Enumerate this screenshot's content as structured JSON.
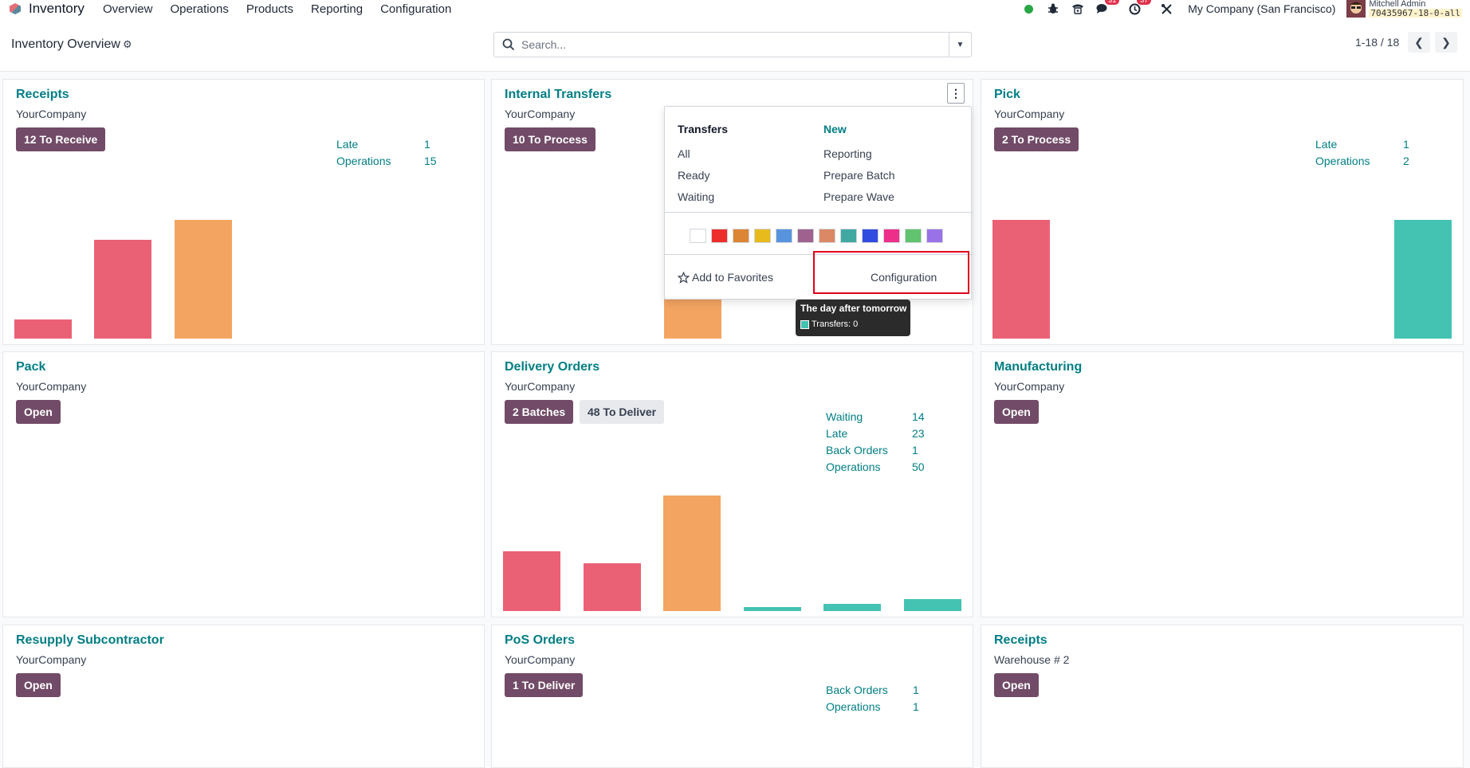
{
  "navbar": {
    "app_name": "Inventory",
    "menu": [
      "Overview",
      "Operations",
      "Products",
      "Reporting",
      "Configuration"
    ],
    "messages_count": "31",
    "activities_count": "37",
    "company": "My Company (San Francisco)",
    "user_name": "Mitchell Admin",
    "db_name": "70435967-18-0-all"
  },
  "control": {
    "title": "Inventory Overview",
    "search_placeholder": "Search...",
    "pager": "1-18 / 18"
  },
  "cards": {
    "receipts": {
      "title": "Receipts",
      "company": "YourCompany",
      "button": "12 To Receive",
      "stats": [
        {
          "label": "Late",
          "value": "1"
        },
        {
          "label": "Operations",
          "value": "15"
        }
      ]
    },
    "internal": {
      "title": "Internal Transfers",
      "company": "YourCompany",
      "button": "10 To Process"
    },
    "pick": {
      "title": "Pick",
      "company": "YourCompany",
      "button": "2 To Process",
      "stats": [
        {
          "label": "Late",
          "value": "1"
        },
        {
          "label": "Operations",
          "value": "2"
        }
      ]
    },
    "pack": {
      "title": "Pack",
      "company": "YourCompany",
      "button": "Open"
    },
    "delivery": {
      "title": "Delivery Orders",
      "company": "YourCompany",
      "button": "2 Batches",
      "button2": "48 To Deliver",
      "stats": [
        {
          "label": "Waiting",
          "value": "14"
        },
        {
          "label": "Late",
          "value": "23"
        },
        {
          "label": "Back Orders",
          "value": "1"
        },
        {
          "label": "Operations",
          "value": "50"
        }
      ]
    },
    "manufacturing": {
      "title": "Manufacturing",
      "company": "YourCompany",
      "button": "Open"
    },
    "resupply": {
      "title": "Resupply Subcontractor",
      "company": "YourCompany",
      "button": "Open"
    },
    "pos": {
      "title": "PoS Orders",
      "company": "YourCompany",
      "button": "1 To Deliver",
      "stats": [
        {
          "label": "Back Orders",
          "value": "1"
        },
        {
          "label": "Operations",
          "value": "1"
        }
      ]
    },
    "receipts2": {
      "title": "Receipts",
      "company": "Warehouse # 2",
      "button": "Open"
    }
  },
  "dropdown": {
    "col1_head": "Transfers",
    "col1_items": [
      "All",
      "Ready",
      "Waiting"
    ],
    "col2_head": "New",
    "col2_items": [
      "Reporting",
      "Prepare Batch",
      "Prepare Wave"
    ],
    "colors": [
      "#ffffff",
      "#ee2d2d",
      "#dc8534",
      "#e8bb1d",
      "#5794dd",
      "#9f628f",
      "#db8865",
      "#41a9a2",
      "#304be0",
      "#ee2f8a",
      "#61c36e",
      "#9872e6"
    ],
    "favorites": "Add to Favorites",
    "configuration": "Configuration"
  },
  "tooltip": {
    "title": "The day after tomorrow",
    "line": "Transfers: 0"
  },
  "colors": {
    "late": "#ea6175",
    "future": "#f3a461",
    "ahead": "#44c2b2",
    "primary": "#714b67",
    "teal": "#017e84"
  }
}
